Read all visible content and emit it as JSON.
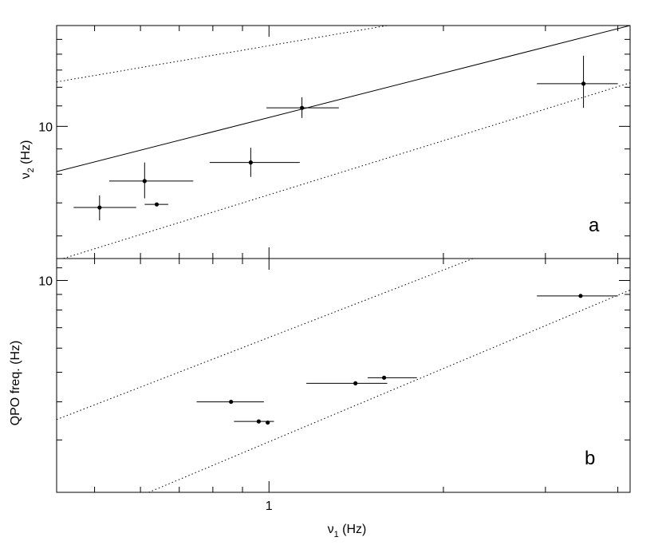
{
  "chart_data": [
    {
      "type": "scatter",
      "panel_label": "a",
      "xscale": "log",
      "yscale": "log",
      "xlim": [
        0.43,
        4.2
      ],
      "ylim": [
        5.4,
        16
      ],
      "ylabel_symbol": "ν",
      "ylabel_sub": "2",
      "ylabel_unit": "(Hz)",
      "yticks_labeled": [
        {
          "value": 10,
          "label": "10"
        }
      ],
      "points": [
        {
          "x": 0.51,
          "y": 6.85,
          "xerr": [
            0.46,
            0.59
          ],
          "yerr": [
            6.45,
            7.25
          ]
        },
        {
          "x": 0.61,
          "y": 7.75,
          "xerr": [
            0.53,
            0.74
          ],
          "yerr": [
            7.15,
            8.45
          ]
        },
        {
          "x": 0.64,
          "y": 6.95,
          "xerr": [
            0.61,
            0.67
          ],
          "yerr": [
            6.9,
            7.0
          ]
        },
        {
          "x": 0.93,
          "y": 8.45,
          "xerr": [
            0.79,
            1.13
          ],
          "yerr": [
            7.9,
            9.05
          ]
        },
        {
          "x": 1.14,
          "y": 10.9,
          "xerr": [
            0.99,
            1.32
          ],
          "yerr": [
            10.4,
            11.45
          ]
        },
        {
          "x": 3.49,
          "y": 12.2,
          "xerr": [
            2.9,
            4.0
          ],
          "yerr": [
            10.9,
            13.9
          ]
        }
      ],
      "lines": [
        {
          "style": "solid",
          "points": [
            [
              0.43,
              8.1
            ],
            [
              4.2,
              16.0
            ]
          ]
        },
        {
          "style": "dotted",
          "points": [
            [
              0.43,
              12.3
            ],
            [
              1.6,
              16.0
            ]
          ]
        },
        {
          "style": "dotted",
          "points": [
            [
              0.43,
              5.35
            ],
            [
              4.2,
              12.25
            ]
          ]
        }
      ]
    },
    {
      "type": "scatter",
      "panel_label": "b",
      "xscale": "log",
      "yscale": "log",
      "xlim": [
        0.43,
        4.2
      ],
      "ylim": [
        2.02,
        11.8
      ],
      "xlabel_symbol": "ν",
      "xlabel_sub": "1",
      "xlabel_unit": "(Hz)",
      "xticks_labeled": [
        {
          "value": 1,
          "label": "1"
        }
      ],
      "yticks_labeled": [
        {
          "value": 10,
          "label": "10"
        }
      ],
      "ylabel": "QPO freq. (Hz)",
      "points": [
        {
          "x": 0.86,
          "y": 4.0,
          "xerr": [
            0.75,
            0.98
          ],
          "yerr": [
            3.98,
            4.02
          ]
        },
        {
          "x": 0.96,
          "y": 3.45,
          "xerr": [
            0.87,
            1.02
          ],
          "yerr": [
            3.44,
            3.46
          ]
        },
        {
          "x": 0.995,
          "y": 3.42,
          "xerr": [
            0.99,
            1.0
          ],
          "yerr": [
            3.41,
            3.43
          ]
        },
        {
          "x": 1.41,
          "y": 4.6,
          "xerr": [
            1.16,
            1.6
          ],
          "yerr": [
            4.59,
            4.61
          ]
        },
        {
          "x": 1.58,
          "y": 4.8,
          "xerr": [
            1.48,
            1.8
          ],
          "yerr": [
            4.79,
            4.81
          ]
        },
        {
          "x": 3.45,
          "y": 8.9,
          "xerr": [
            2.9,
            4.0
          ],
          "yerr": [
            8.89,
            8.91
          ]
        }
      ],
      "lines": [
        {
          "style": "dotted",
          "points": [
            [
              0.43,
              3.5
            ],
            [
              2.25,
              11.8
            ]
          ]
        },
        {
          "style": "dotted",
          "points": [
            [
              0.62,
              2.02
            ],
            [
              4.2,
              9.3
            ]
          ]
        }
      ]
    }
  ]
}
